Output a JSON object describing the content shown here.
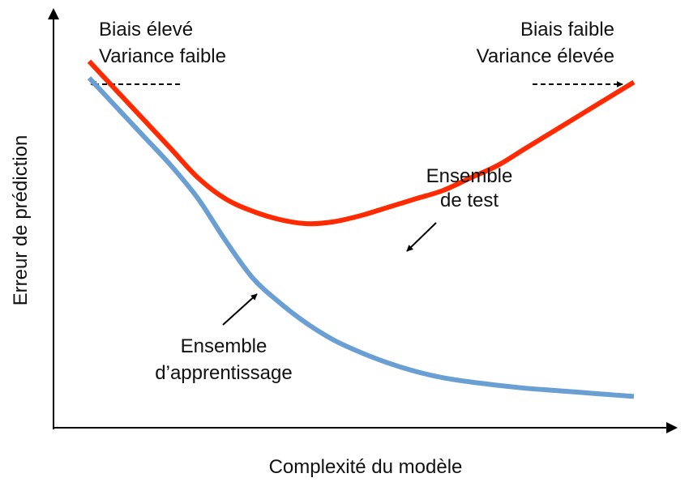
{
  "chart_data": {
    "type": "line",
    "xlabel": "Complexité du modèle",
    "ylabel": "Erreur de prédiction",
    "xlim": [
      0,
      100
    ],
    "ylim": [
      0,
      100
    ],
    "grid": false,
    "legend": "none",
    "corner_labels": {
      "left": [
        "Biais élevé",
        "Variance faible"
      ],
      "right": [
        "Biais faible",
        "Variance élevée"
      ]
    },
    "series": [
      {
        "name": "Ensemble de test",
        "label_lines": [
          "Ensemble",
          "de test"
        ],
        "color": "#ff2a00",
        "x": [
          0,
          5,
          10,
          15,
          20,
          25,
          30,
          35,
          40,
          45,
          50,
          55,
          60,
          65,
          70,
          75,
          80,
          85,
          90,
          95,
          100
        ],
        "y": [
          88,
          81,
          74,
          67,
          60,
          55,
          52,
          50,
          49,
          49.5,
          51,
          53,
          55,
          57,
          60,
          63,
          67,
          71,
          75,
          79,
          83
        ]
      },
      {
        "name": "Ensemble d’apprentissage",
        "label_lines": [
          "Ensemble",
          "d’apprentissage"
        ],
        "color": "#6a9fd4",
        "x": [
          0,
          5,
          10,
          15,
          20,
          25,
          30,
          35,
          40,
          45,
          50,
          55,
          60,
          65,
          70,
          75,
          80,
          85,
          90,
          95,
          100
        ],
        "y": [
          84,
          77,
          70,
          63,
          55,
          45,
          36,
          30,
          25,
          21,
          18,
          15.5,
          13.5,
          12,
          11,
          10.2,
          9.5,
          9,
          8.5,
          8,
          7.5
        ]
      }
    ]
  }
}
